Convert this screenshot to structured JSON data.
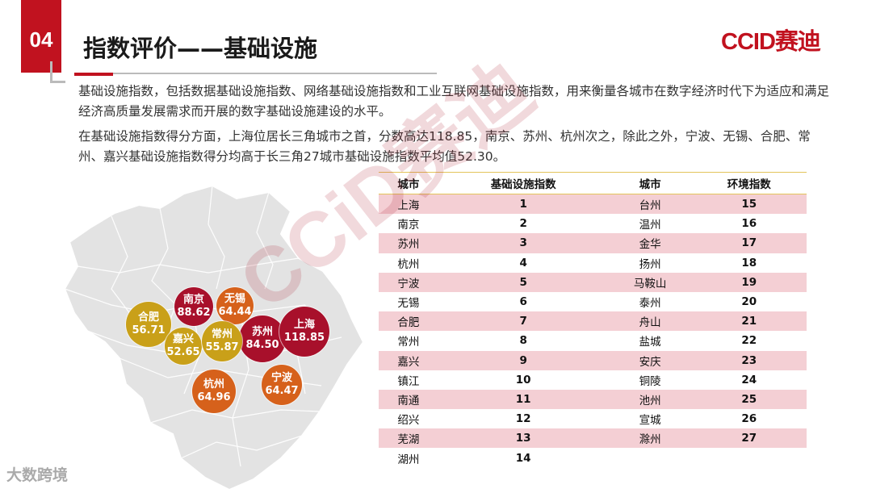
{
  "section": {
    "number": "04",
    "title": "指数评价——基础设施"
  },
  "logo": {
    "text": "CCID赛迪"
  },
  "watermark": {
    "text": "CCiD赛迪"
  },
  "paragraphs": [
    "基础设施指数，包括数据基础设施指数、网络基础设施指数和工业互联网基础设施指数，用来衡量各城市在数字经济时代下为适应和满足经济高质量发展需求而开展的数字基础设施建设的水平。",
    "在基础设施指数得分方面，上海位居长三角城市之首，分数高达118.85，南京、苏州、杭州次之，除此之外，宁波、无锡、合肥、常州、嘉兴基础设施指数得分均高于长三角27城市基础设施指数平均值52.30。"
  ],
  "map": {
    "bubbles": [
      {
        "name": "南京",
        "value": "88.62",
        "color": "#a8102b"
      },
      {
        "name": "无锡",
        "value": "64.44",
        "color": "#d6611b"
      },
      {
        "name": "合肥",
        "value": "56.71",
        "color": "#c9a019"
      },
      {
        "name": "苏州",
        "value": "84.50",
        "color": "#a8102b"
      },
      {
        "name": "上海",
        "value": "118.85",
        "color": "#a8102b"
      },
      {
        "name": "嘉兴",
        "value": "52.65",
        "color": "#c9a019"
      },
      {
        "name": "常州",
        "value": "55.87",
        "color": "#c9a019"
      },
      {
        "name": "杭州",
        "value": "64.96",
        "color": "#d6611b"
      },
      {
        "name": "宁波",
        "value": "64.47",
        "color": "#d6611b"
      }
    ]
  },
  "table": {
    "headers": [
      "城市",
      "基础设施指数",
      "城市",
      "环境指数"
    ],
    "rows": [
      [
        "上海",
        "1",
        "台州",
        "15"
      ],
      [
        "南京",
        "2",
        "温州",
        "16"
      ],
      [
        "苏州",
        "3",
        "金华",
        "17"
      ],
      [
        "杭州",
        "4",
        "扬州",
        "18"
      ],
      [
        "宁波",
        "5",
        "马鞍山",
        "19"
      ],
      [
        "无锡",
        "6",
        "泰州",
        "20"
      ],
      [
        "合肥",
        "7",
        "舟山",
        "21"
      ],
      [
        "常州",
        "8",
        "盐城",
        "22"
      ],
      [
        "嘉兴",
        "9",
        "安庆",
        "23"
      ],
      [
        "镇江",
        "10",
        "铜陵",
        "24"
      ],
      [
        "南通",
        "11",
        "池州",
        "25"
      ],
      [
        "绍兴",
        "12",
        "宣城",
        "26"
      ],
      [
        "芜湖",
        "13",
        "滁州",
        "27"
      ],
      [
        "湖州",
        "14",
        "",
        ""
      ]
    ]
  },
  "footer": {
    "text": "大数跨境"
  }
}
